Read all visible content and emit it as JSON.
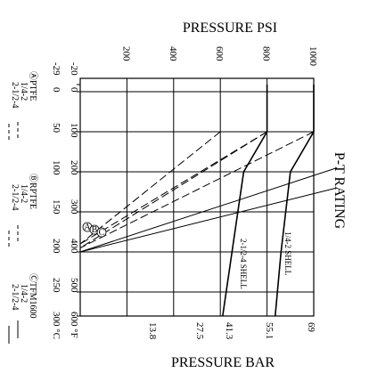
{
  "chart_data": {
    "type": "line",
    "title": "P-T RATING",
    "top_axis": {
      "title": "PRESSURE PSI",
      "ticks": [
        "200",
        "400",
        "600",
        "800",
        "1000"
      ],
      "values": [
        200,
        400,
        600,
        800,
        1000
      ],
      "range": [
        0,
        1000
      ]
    },
    "bottom_axis": {
      "title": "PRESSURE BAR",
      "ticks": [
        "13.8",
        "27.5",
        "41.3",
        "55.1",
        "69"
      ],
      "values": [
        13.8,
        27.5,
        41.3,
        55.1,
        69
      ]
    },
    "temp_axis_f": {
      "ticks": [
        "-20",
        "0",
        "100",
        "200",
        "300",
        "400",
        "500",
        "600 °F"
      ],
      "values": [
        -20,
        0,
        100,
        200,
        300,
        400,
        500,
        600
      ]
    },
    "temp_axis_c": {
      "ticks": [
        "-29",
        "0",
        "50",
        "100",
        "150",
        "200",
        "250",
        "300 °C"
      ],
      "values": [
        -29,
        0,
        50,
        100,
        150,
        200,
        250,
        300
      ]
    },
    "series": [
      {
        "name": "1/4-2 SHELL",
        "style": "solid",
        "x_psi": [
          1000,
          1000,
          900,
          860,
          835
        ],
        "y_f": [
          -20,
          100,
          200,
          400,
          600
        ]
      },
      {
        "name": "2-1/2-4 SHELL",
        "style": "solid",
        "x_psi": [
          800,
          800,
          700,
          650,
          610
        ],
        "y_f": [
          -20,
          100,
          200,
          400,
          600
        ]
      },
      {
        "name": "Ⓐ 1/4-2",
        "style": "dash",
        "x_psi": [
          800,
          0
        ],
        "y_f": [
          100,
          380
        ]
      },
      {
        "name": "Ⓐ 2-1/2-4",
        "style": "dash",
        "x_psi": [
          600,
          0
        ],
        "y_f": [
          100,
          380
        ]
      },
      {
        "name": "Ⓑ 1/4-2",
        "style": "dash",
        "x_psi": [
          1000,
          0
        ],
        "y_f": [
          100,
          390
        ]
      },
      {
        "name": "Ⓑ 2-1/2-4",
        "style": "dash",
        "x_psi": [
          800,
          0
        ],
        "y_f": [
          100,
          390
        ]
      },
      {
        "name": "Ⓒ 1/4-2",
        "style": "solid",
        "x_psi": [
          1100,
          0
        ],
        "y_f": [
          190,
          400
        ]
      },
      {
        "name": "Ⓒ 2-1/2-4",
        "style": "solid",
        "x_psi": [
          1100,
          0
        ],
        "y_f": [
          240,
          400
        ]
      }
    ],
    "markers": [
      "A",
      "B",
      "C"
    ],
    "curve_labels": [
      "2-1/2-4 SHELL",
      "1/4-2 SHELL"
    ],
    "legend": [
      {
        "material": "ⒶPTFE",
        "rows": [
          {
            "size": "1/4-2"
          },
          {
            "size": "2-1/2-4"
          }
        ]
      },
      {
        "material": "ⒷRPTFE",
        "rows": [
          {
            "size": "1/4-2"
          },
          {
            "size": "2-1/2-4"
          }
        ]
      },
      {
        "material": "ⒸTFM1600",
        "rows": [
          {
            "size": "1/4-2"
          },
          {
            "size": "2-1/2-4"
          }
        ]
      }
    ]
  }
}
